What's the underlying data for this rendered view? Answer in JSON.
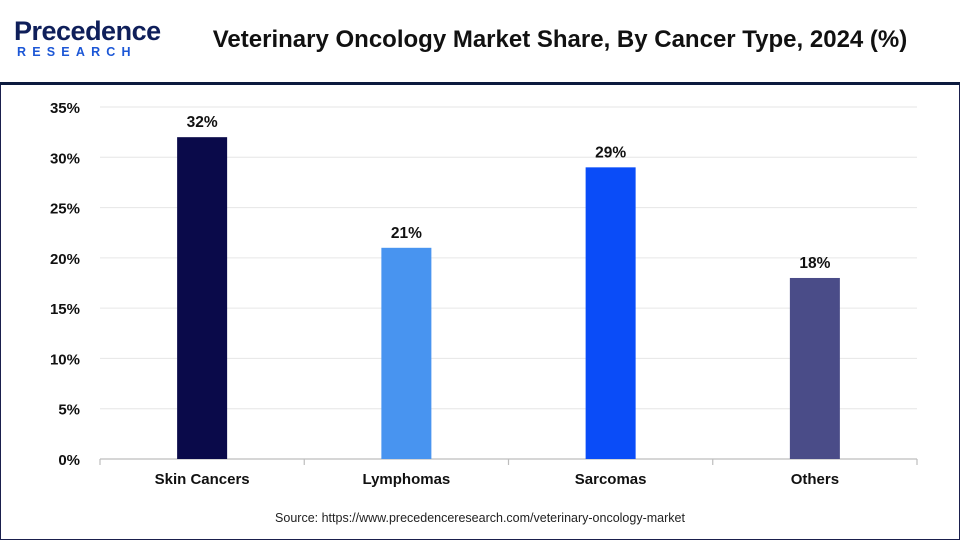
{
  "brand": {
    "logo_main": "Precedence",
    "logo_sub": "RESEARCH"
  },
  "chart_data": {
    "type": "bar",
    "title": "Veterinary Oncology Market Share, By Cancer Type, 2024 (%)",
    "categories": [
      "Skin Cancers",
      "Lymphomas",
      "Sarcomas",
      "Others"
    ],
    "values": [
      32,
      21,
      29,
      18
    ],
    "data_labels": [
      "32%",
      "21%",
      "29%",
      "18%"
    ],
    "bar_colors": [
      "#0a0a4a",
      "#4894f0",
      "#0a4cf8",
      "#4a4c88"
    ],
    "ylim": [
      0,
      35
    ],
    "yticks": [
      0,
      5,
      10,
      15,
      20,
      25,
      30,
      35
    ],
    "ytick_labels": [
      "0%",
      "5%",
      "10%",
      "15%",
      "20%",
      "25%",
      "30%",
      "35%"
    ],
    "grid": true,
    "xlabel": "",
    "ylabel": ""
  },
  "source": "Source: https://www.precedenceresearch.com/veterinary-oncology-market"
}
